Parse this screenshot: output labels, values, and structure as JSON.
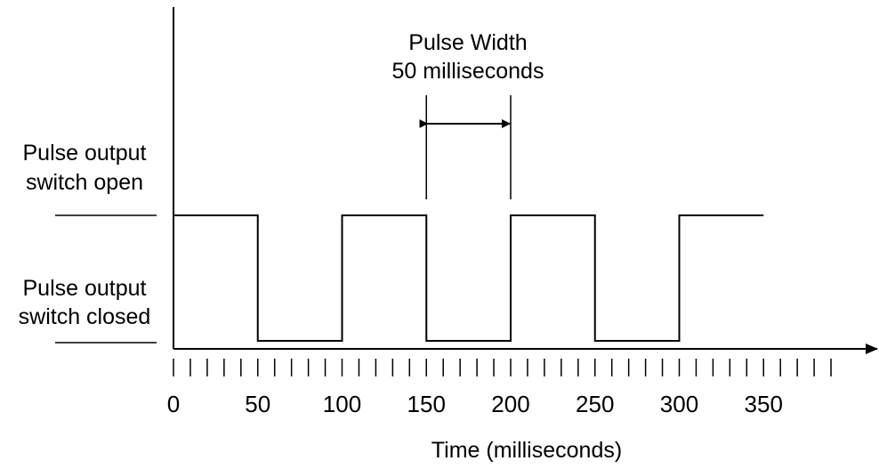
{
  "labels": {
    "open_line1": "Pulse output",
    "open_line2": "switch open",
    "closed_line1": "Pulse output",
    "closed_line2": "switch closed",
    "pulse_width_line1": "Pulse Width",
    "pulse_width_line2": "50 milliseconds",
    "x_axis_title": "Time (milliseconds)"
  },
  "x_tick_labels": [
    "0",
    "50",
    "100",
    "150",
    "200",
    "250",
    "300",
    "350"
  ],
  "waveform": {
    "levels": [
      "open",
      "closed"
    ],
    "segments": [
      {
        "from": 0,
        "to": 50,
        "state": "open"
      },
      {
        "from": 50,
        "to": 100,
        "state": "closed"
      },
      {
        "from": 100,
        "to": 150,
        "state": "open"
      },
      {
        "from": 150,
        "to": 200,
        "state": "closed"
      },
      {
        "from": 200,
        "to": 250,
        "state": "open"
      },
      {
        "from": 250,
        "to": 300,
        "state": "closed"
      },
      {
        "from": 300,
        "to": 350,
        "state": "open"
      }
    ],
    "pulse_width_ms": 50,
    "pulse_width_span": [
      150,
      200
    ],
    "minor_tick_step_ms": 10,
    "axis_max_ms": 390
  },
  "colors": {
    "stroke": "#000000",
    "background": "#ffffff"
  }
}
